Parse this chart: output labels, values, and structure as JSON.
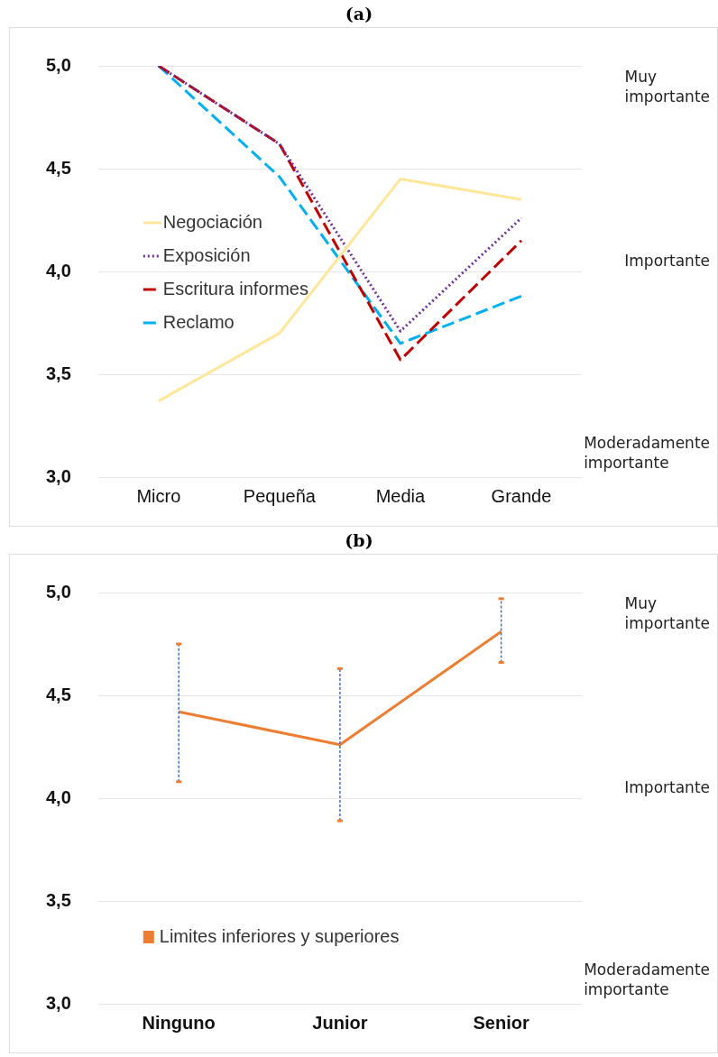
{
  "chart_data": [
    {
      "type": "line",
      "title": "(a)",
      "categories": [
        "Micro",
        "Pequeña",
        "Media",
        "Grande"
      ],
      "series": [
        {
          "name": "Negociación",
          "color": "#ffe699",
          "line_style": "solid",
          "values": [
            3.37,
            3.7,
            4.45,
            4.35
          ]
        },
        {
          "name": "Exposición",
          "color": "#7030a0",
          "line_style": "dotted",
          "values": [
            5.0,
            4.62,
            3.71,
            4.26
          ]
        },
        {
          "name": "Escritura informes",
          "color": "#c00000",
          "line_style": "dashed",
          "values": [
            5.0,
            4.62,
            3.57,
            4.15
          ]
        },
        {
          "name": "Reclamo",
          "color": "#00b0f0",
          "line_style": "dashed",
          "values": [
            5.0,
            4.46,
            3.65,
            3.88
          ]
        }
      ],
      "ylim": [
        3,
        5
      ],
      "yticks": [
        {
          "value": 3,
          "label": "3,0"
        },
        {
          "value": 3.5,
          "label": "3,5"
        },
        {
          "value": 4,
          "label": "4,0"
        },
        {
          "value": 4.5,
          "label": "4,5"
        },
        {
          "value": 5,
          "label": "5,0"
        }
      ],
      "grid": "y",
      "legend": "left",
      "marker": "none",
      "annotations": [
        "Muy importante",
        "Importante",
        "Moderadamente importante"
      ]
    },
    {
      "type": "line",
      "title": "(b)",
      "categories": [
        "Ninguno",
        "Junior",
        "Senior"
      ],
      "series": [
        {
          "name": "Limites inferiores y superiores",
          "color": "#ed7d31",
          "line_style": "solid",
          "values": [
            4.42,
            4.26,
            4.81
          ],
          "errors": [
            [
              4.08,
              4.75
            ],
            [
              3.89,
              4.63
            ],
            [
              4.66,
              4.97
            ]
          ]
        }
      ],
      "ylim": [
        3,
        5
      ],
      "yticks": [
        {
          "value": 3,
          "label": "3,0"
        },
        {
          "value": 3.5,
          "label": "3,5"
        },
        {
          "value": 4,
          "label": "4,0"
        },
        {
          "value": 4.5,
          "label": "4,5"
        },
        {
          "value": 5,
          "label": "5,0"
        }
      ],
      "grid": "y",
      "legend": "bottom left",
      "marker": "none",
      "annotations": [
        "Muy importante",
        "Importante",
        "Moderadamente importante"
      ]
    }
  ]
}
